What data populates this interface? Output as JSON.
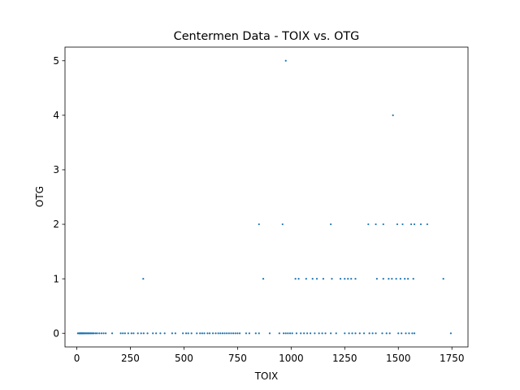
{
  "chart_data": {
    "type": "scatter",
    "title": "Centermen Data - TOIX vs. OTG",
    "xlabel": "TOIX",
    "ylabel": "OTG",
    "xlim": [
      -55,
      1825
    ],
    "ylim": [
      -0.25,
      5.25
    ],
    "xticks": [
      0,
      250,
      500,
      750,
      1000,
      1250,
      1500,
      1750
    ],
    "yticks": [
      0,
      1,
      2,
      3,
      4,
      5
    ],
    "grid": false,
    "marker_color": "#1f77b4",
    "series": [
      {
        "points": [
          [
            5,
            0
          ],
          [
            10,
            0
          ],
          [
            12,
            0
          ],
          [
            15,
            0
          ],
          [
            18,
            0
          ],
          [
            20,
            0
          ],
          [
            22,
            0
          ],
          [
            25,
            0
          ],
          [
            28,
            0
          ],
          [
            30,
            0
          ],
          [
            33,
            0
          ],
          [
            36,
            0
          ],
          [
            40,
            0
          ],
          [
            44,
            0
          ],
          [
            48,
            0
          ],
          [
            52,
            0
          ],
          [
            56,
            0
          ],
          [
            60,
            0
          ],
          [
            65,
            0
          ],
          [
            70,
            0
          ],
          [
            75,
            0
          ],
          [
            80,
            0
          ],
          [
            88,
            0
          ],
          [
            95,
            0
          ],
          [
            105,
            0
          ],
          [
            115,
            0
          ],
          [
            125,
            0
          ],
          [
            135,
            0
          ],
          [
            165,
            0
          ],
          [
            205,
            0
          ],
          [
            215,
            0
          ],
          [
            225,
            0
          ],
          [
            240,
            0
          ],
          [
            255,
            0
          ],
          [
            265,
            0
          ],
          [
            285,
            0
          ],
          [
            300,
            0
          ],
          [
            312,
            0
          ],
          [
            330,
            0
          ],
          [
            355,
            0
          ],
          [
            370,
            0
          ],
          [
            390,
            0
          ],
          [
            410,
            0
          ],
          [
            445,
            0
          ],
          [
            460,
            0
          ],
          [
            495,
            0
          ],
          [
            510,
            0
          ],
          [
            520,
            0
          ],
          [
            535,
            0
          ],
          [
            560,
            0
          ],
          [
            575,
            0
          ],
          [
            585,
            0
          ],
          [
            595,
            0
          ],
          [
            610,
            0
          ],
          [
            620,
            0
          ],
          [
            635,
            0
          ],
          [
            648,
            0
          ],
          [
            660,
            0
          ],
          [
            670,
            0
          ],
          [
            680,
            0
          ],
          [
            690,
            0
          ],
          [
            700,
            0
          ],
          [
            710,
            0
          ],
          [
            720,
            0
          ],
          [
            730,
            0
          ],
          [
            740,
            0
          ],
          [
            750,
            0
          ],
          [
            760,
            0
          ],
          [
            790,
            0
          ],
          [
            805,
            0
          ],
          [
            835,
            0
          ],
          [
            850,
            0
          ],
          [
            900,
            0
          ],
          [
            945,
            0
          ],
          [
            965,
            0
          ],
          [
            975,
            0
          ],
          [
            985,
            0
          ],
          [
            995,
            0
          ],
          [
            1005,
            0
          ],
          [
            1025,
            0
          ],
          [
            1045,
            0
          ],
          [
            1060,
            0
          ],
          [
            1075,
            0
          ],
          [
            1090,
            0
          ],
          [
            1110,
            0
          ],
          [
            1130,
            0
          ],
          [
            1145,
            0
          ],
          [
            1160,
            0
          ],
          [
            1185,
            0
          ],
          [
            1210,
            0
          ],
          [
            1250,
            0
          ],
          [
            1270,
            0
          ],
          [
            1285,
            0
          ],
          [
            1300,
            0
          ],
          [
            1320,
            0
          ],
          [
            1340,
            0
          ],
          [
            1365,
            0
          ],
          [
            1380,
            0
          ],
          [
            1395,
            0
          ],
          [
            1425,
            0
          ],
          [
            1445,
            0
          ],
          [
            1460,
            0
          ],
          [
            1500,
            0
          ],
          [
            1515,
            0
          ],
          [
            1535,
            0
          ],
          [
            1550,
            0
          ],
          [
            1565,
            0
          ],
          [
            1575,
            0
          ],
          [
            1745,
            0
          ],
          [
            310,
            1
          ],
          [
            870,
            1
          ],
          [
            1020,
            1
          ],
          [
            1035,
            1
          ],
          [
            1070,
            1
          ],
          [
            1100,
            1
          ],
          [
            1120,
            1
          ],
          [
            1150,
            1
          ],
          [
            1190,
            1
          ],
          [
            1230,
            1
          ],
          [
            1250,
            1
          ],
          [
            1265,
            1
          ],
          [
            1280,
            1
          ],
          [
            1300,
            1
          ],
          [
            1400,
            1
          ],
          [
            1430,
            1
          ],
          [
            1455,
            1
          ],
          [
            1470,
            1
          ],
          [
            1490,
            1
          ],
          [
            1510,
            1
          ],
          [
            1530,
            1
          ],
          [
            1545,
            1
          ],
          [
            1570,
            1
          ],
          [
            1710,
            1
          ],
          [
            850,
            2
          ],
          [
            960,
            2
          ],
          [
            1185,
            2
          ],
          [
            1360,
            2
          ],
          [
            1395,
            2
          ],
          [
            1430,
            2
          ],
          [
            1495,
            2
          ],
          [
            1520,
            2
          ],
          [
            1560,
            2
          ],
          [
            1575,
            2
          ],
          [
            1605,
            2
          ],
          [
            1635,
            2
          ],
          [
            1475,
            4
          ],
          [
            975,
            5
          ]
        ]
      }
    ]
  }
}
